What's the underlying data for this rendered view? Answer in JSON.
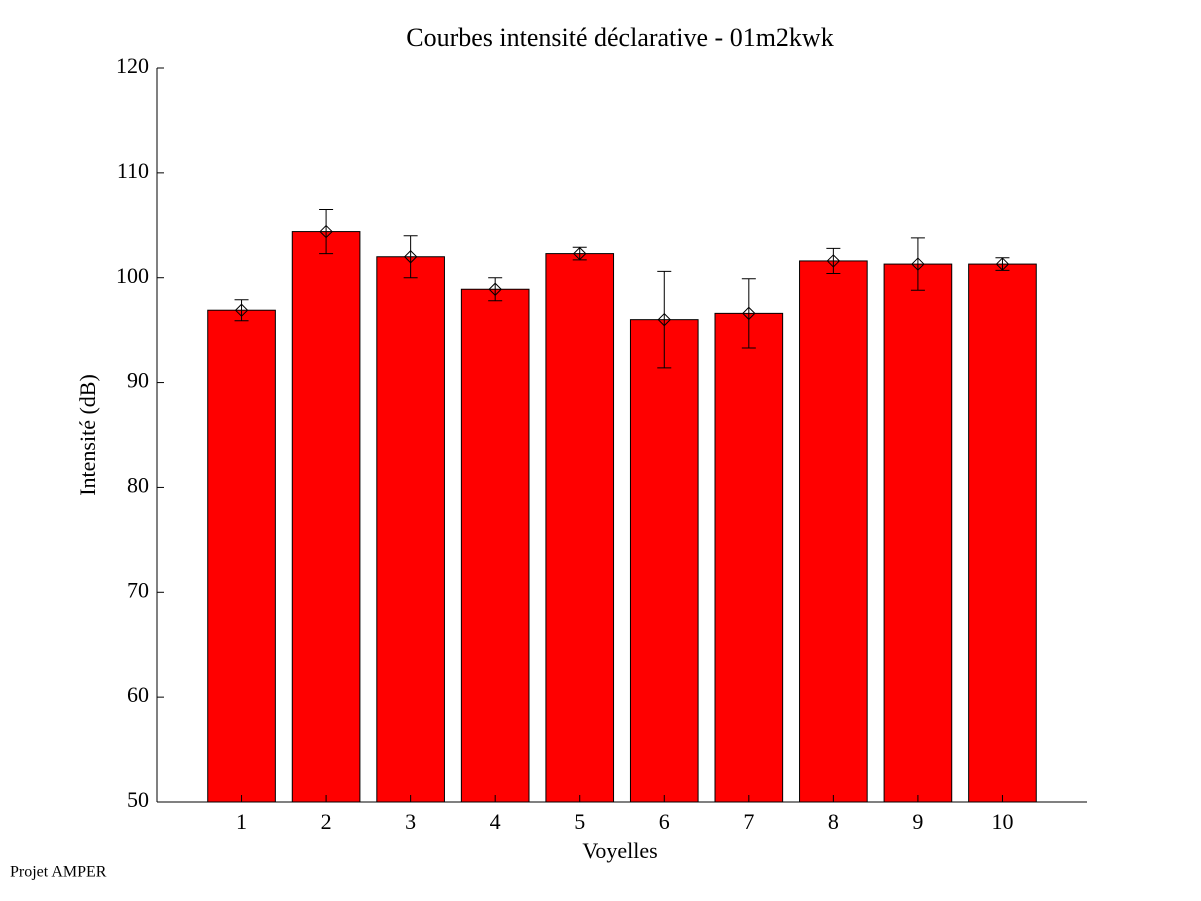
{
  "chart_data": {
    "type": "bar",
    "title": "Courbes intensité déclarative - 01m2kwk",
    "x_label": "Voyelles",
    "y_label": "Intensité (dB)",
    "categories": [
      "1",
      "2",
      "3",
      "4",
      "5",
      "6",
      "7",
      "8",
      "9",
      "10"
    ],
    "values": [
      96.9,
      104.4,
      102.0,
      98.9,
      102.3,
      96.0,
      96.6,
      101.6,
      101.3,
      101.3
    ],
    "errors": [
      1.0,
      2.1,
      2.0,
      1.1,
      0.6,
      4.6,
      3.3,
      1.2,
      2.5,
      0.6
    ],
    "color": "#ff0000",
    "ylim": [
      50,
      120
    ],
    "yticks": [
      50,
      60,
      70,
      80,
      90,
      100,
      110,
      120
    ],
    "grid": false
  },
  "footer": "Projet AMPER"
}
